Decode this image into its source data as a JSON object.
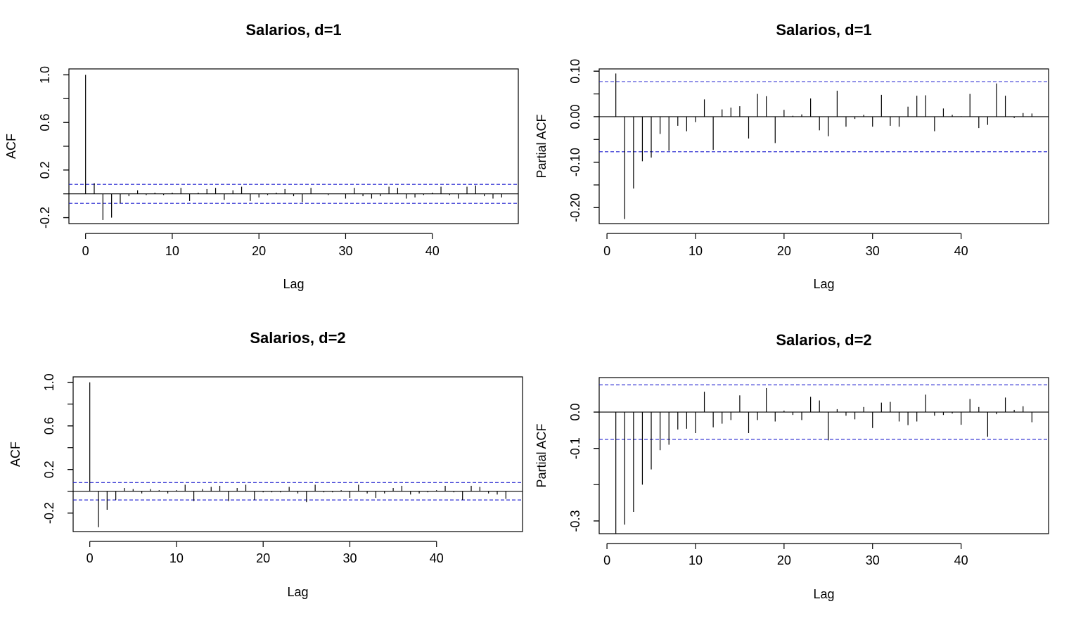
{
  "chart_data": [
    {
      "type": "bar",
      "title": "Salarios, d=1",
      "xlabel": "Lag",
      "ylabel": "ACF",
      "xlim": [
        0,
        48
      ],
      "ylim": [
        -0.25,
        1.05
      ],
      "xticks": [
        0,
        10,
        20,
        30,
        40
      ],
      "yticks": [
        -0.2,
        0.2,
        0.6,
        1.0
      ],
      "yticklabels": [
        "-0.2",
        "0.2",
        "0.6",
        "1.0"
      ],
      "ci": 0.08,
      "x": [
        0,
        1,
        2,
        3,
        4,
        5,
        6,
        7,
        8,
        9,
        10,
        11,
        12,
        13,
        14,
        15,
        16,
        17,
        18,
        19,
        20,
        21,
        22,
        23,
        24,
        25,
        26,
        27,
        28,
        29,
        30,
        31,
        32,
        33,
        34,
        35,
        36,
        37,
        38,
        39,
        40,
        41,
        42,
        43,
        44,
        45,
        46,
        47,
        48
      ],
      "values": [
        1.0,
        0.09,
        -0.22,
        -0.2,
        -0.08,
        -0.02,
        0.03,
        -0.01,
        0.01,
        -0.01,
        0.01,
        0.05,
        -0.06,
        0.01,
        0.04,
        0.05,
        -0.05,
        0.03,
        0.06,
        -0.06,
        -0.03,
        -0.01,
        0.01,
        0.04,
        -0.02,
        -0.07,
        0.05,
        0.0,
        -0.01,
        0.0,
        -0.04,
        0.05,
        -0.02,
        -0.04,
        -0.02,
        0.06,
        0.05,
        -0.04,
        -0.03,
        -0.01,
        0.01,
        0.06,
        -0.01,
        -0.04,
        0.06,
        0.07,
        -0.02,
        -0.04,
        -0.03
      ]
    },
    {
      "type": "bar",
      "title": "Salarios, d=1",
      "xlabel": "Lag",
      "ylabel": "Partial ACF",
      "xlim": [
        1,
        48
      ],
      "ylim": [
        -0.235,
        0.105
      ],
      "xticks": [
        0,
        10,
        20,
        30,
        40
      ],
      "yticks": [
        -0.2,
        -0.1,
        0.0,
        0.1
      ],
      "yticklabels": [
        "-0.20",
        "-0.10",
        "0.00",
        "0.10"
      ],
      "ci": 0.077,
      "x": [
        1,
        2,
        3,
        4,
        5,
        6,
        7,
        8,
        9,
        10,
        11,
        12,
        13,
        14,
        15,
        16,
        17,
        18,
        19,
        20,
        21,
        22,
        23,
        24,
        25,
        26,
        27,
        28,
        29,
        30,
        31,
        32,
        33,
        34,
        35,
        36,
        37,
        38,
        39,
        40,
        41,
        42,
        43,
        44,
        45,
        46,
        47,
        48
      ],
      "values": [
        0.095,
        -0.225,
        -0.158,
        -0.098,
        -0.09,
        -0.038,
        -0.075,
        -0.02,
        -0.032,
        -0.012,
        0.038,
        -0.073,
        0.016,
        0.02,
        0.023,
        -0.048,
        0.05,
        0.045,
        -0.058,
        0.015,
        0.002,
        0.005,
        0.04,
        -0.03,
        -0.043,
        0.057,
        -0.022,
        -0.005,
        0.004,
        -0.022,
        0.048,
        -0.02,
        -0.022,
        0.022,
        0.046,
        0.047,
        -0.032,
        0.018,
        0.004,
        0.001,
        0.05,
        -0.025,
        -0.018,
        0.073,
        0.046,
        -0.003,
        0.008,
        0.007
      ]
    },
    {
      "type": "bar",
      "title": "Salarios, d=2",
      "xlabel": "Lag",
      "ylabel": "ACF",
      "xlim": [
        0,
        48
      ],
      "ylim": [
        -0.37,
        1.05
      ],
      "xticks": [
        0,
        10,
        20,
        30,
        40
      ],
      "yticks": [
        -0.2,
        0.2,
        0.6,
        1.0
      ],
      "yticklabels": [
        "-0.2",
        "0.2",
        "0.6",
        "1.0"
      ],
      "ci": 0.08,
      "x": [
        0,
        1,
        2,
        3,
        4,
        5,
        6,
        7,
        8,
        9,
        10,
        11,
        12,
        13,
        14,
        15,
        16,
        17,
        18,
        19,
        20,
        21,
        22,
        23,
        24,
        25,
        26,
        27,
        28,
        29,
        30,
        31,
        32,
        33,
        34,
        35,
        36,
        37,
        38,
        39,
        40,
        41,
        42,
        43,
        44,
        45,
        46,
        47,
        48
      ],
      "values": [
        1.0,
        -0.33,
        -0.17,
        -0.08,
        0.03,
        0.02,
        -0.02,
        0.02,
        0.01,
        -0.02,
        0.01,
        0.06,
        -0.09,
        0.02,
        0.04,
        0.05,
        -0.09,
        0.03,
        0.06,
        -0.08,
        -0.01,
        -0.01,
        -0.01,
        0.04,
        -0.02,
        -0.1,
        0.06,
        -0.01,
        -0.01,
        0.01,
        -0.06,
        0.06,
        -0.02,
        -0.06,
        -0.02,
        0.03,
        0.05,
        -0.03,
        -0.02,
        -0.01,
        0.01,
        0.05,
        -0.01,
        -0.08,
        0.05,
        0.04,
        -0.02,
        -0.03,
        -0.07
      ]
    },
    {
      "type": "bar",
      "title": "Salarios, d=2",
      "xlabel": "Lag",
      "ylabel": "Partial ACF",
      "xlim": [
        1,
        48
      ],
      "ylim": [
        -0.335,
        0.095
      ],
      "xticks": [
        0,
        10,
        20,
        30,
        40
      ],
      "yticks": [
        -0.3,
        -0.1,
        0.0
      ],
      "yticklabels": [
        "-0.3",
        "-0.1",
        "0.0"
      ],
      "ci": 0.075,
      "x": [
        1,
        2,
        3,
        4,
        5,
        6,
        7,
        8,
        9,
        10,
        11,
        12,
        13,
        14,
        15,
        16,
        17,
        18,
        19,
        20,
        21,
        22,
        23,
        24,
        25,
        26,
        27,
        28,
        29,
        30,
        31,
        32,
        33,
        34,
        35,
        36,
        37,
        38,
        39,
        40,
        41,
        42,
        43,
        44,
        45,
        46,
        47,
        48
      ],
      "values": [
        -0.335,
        -0.31,
        -0.275,
        -0.2,
        -0.158,
        -0.105,
        -0.09,
        -0.048,
        -0.046,
        -0.058,
        0.056,
        -0.042,
        -0.032,
        -0.022,
        0.046,
        -0.058,
        -0.022,
        0.066,
        -0.026,
        0.004,
        -0.008,
        -0.022,
        0.042,
        0.032,
        -0.078,
        0.008,
        -0.01,
        -0.02,
        0.014,
        -0.044,
        0.026,
        0.028,
        -0.026,
        -0.036,
        -0.026,
        0.048,
        -0.01,
        -0.008,
        -0.004,
        -0.035,
        0.036,
        0.014,
        -0.068,
        -0.006,
        0.04,
        0.006,
        0.016,
        -0.028
      ]
    }
  ]
}
